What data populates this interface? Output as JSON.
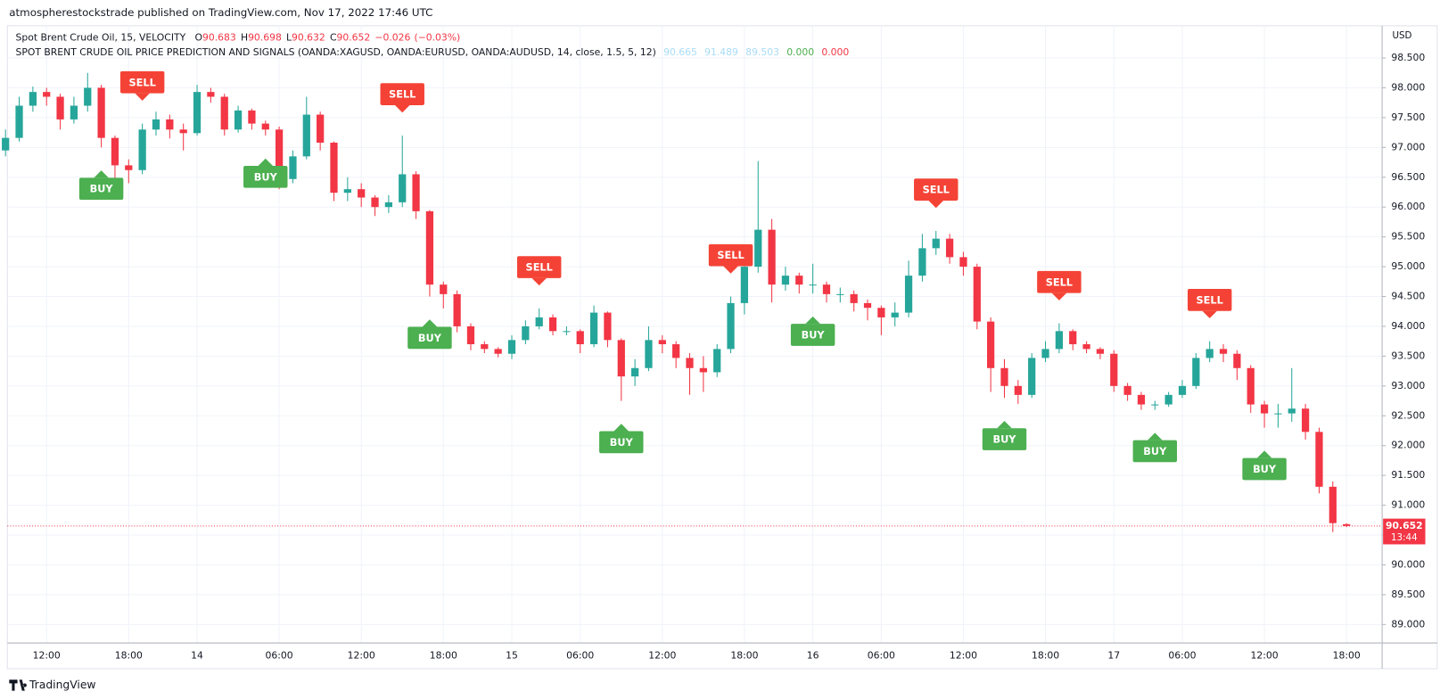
{
  "header": {
    "publisher": "atmospherestockstrade published on TradingView.com, Nov 17, 2022 17:46 UTC"
  },
  "footer": {
    "brand": "TradingView"
  },
  "chart_data": {
    "type": "candlestick",
    "symbol_line": "Spot Brent Crude Oil, 15, VELOCITY",
    "ohlc_letters": [
      "O",
      "H",
      "L",
      "C"
    ],
    "change": {
      "value": -0.026,
      "label": "−0.026"
    },
    "change_pct": {
      "value": -0.03,
      "label": "(−0.03%)"
    },
    "indicator_title": "SPOT BRENT CRUDE OIL PRICE PREDICTION AND SIGNALS (OANDA:XAGUSD, OANDA:EURUSD, OANDA:AUDUSD, 14, close, 1.5, 5, 12)",
    "indicator_values": [
      {
        "value": 90.665,
        "color": "#a9dcf7"
      },
      {
        "value": 91.489,
        "color": "#a9dcf7"
      },
      {
        "value": 89.503,
        "color": "#a9dcf7"
      },
      {
        "value": 0,
        "label": "0.000",
        "color": "#4caf50"
      },
      {
        "value": 0,
        "label": "0.000",
        "color": "#f23645"
      }
    ],
    "currency": "USD",
    "countdown": "13:44",
    "up_color": "#26a69a",
    "down_color": "#f23645",
    "grid": true,
    "ylim": [
      88.69,
      99.04
    ],
    "yticks": [
      {
        "value": 89,
        "label": "89.000"
      },
      {
        "value": 89.5,
        "label": "89.500"
      },
      {
        "value": 90,
        "label": "90.000"
      },
      {
        "value": 90.5,
        "label": "90.500"
      },
      {
        "value": 91,
        "label": "91.000"
      },
      {
        "value": 91.5,
        "label": "91.500"
      },
      {
        "value": 92,
        "label": "92.000"
      },
      {
        "value": 92.5,
        "label": "92.500"
      },
      {
        "value": 93,
        "label": "93.000"
      },
      {
        "value": 93.5,
        "label": "93.500"
      },
      {
        "value": 94,
        "label": "94.000"
      },
      {
        "value": 94.5,
        "label": "94.500"
      },
      {
        "value": 95,
        "label": "95.000"
      },
      {
        "value": 95.5,
        "label": "95.500"
      },
      {
        "value": 96,
        "label": "96.000"
      },
      {
        "value": 96.5,
        "label": "96.500"
      },
      {
        "value": 97,
        "label": "97.000"
      },
      {
        "value": 97.5,
        "label": "97.500"
      },
      {
        "value": 98,
        "label": "98.000"
      },
      {
        "value": 98.5,
        "label": "98.500"
      }
    ],
    "categories": [
      null,
      null,
      null,
      "12:00",
      null,
      null,
      null,
      null,
      null,
      "18:00",
      null,
      null,
      null,
      null,
      "14",
      null,
      null,
      null,
      null,
      null,
      "06:00",
      null,
      null,
      null,
      null,
      null,
      "12:00",
      null,
      null,
      null,
      null,
      null,
      "18:00",
      null,
      null,
      null,
      null,
      "15",
      null,
      null,
      null,
      null,
      "06:00",
      null,
      null,
      null,
      null,
      null,
      "12:00",
      null,
      null,
      null,
      null,
      null,
      "18:00",
      null,
      null,
      null,
      null,
      "16",
      null,
      null,
      null,
      null,
      "06:00",
      null,
      null,
      null,
      null,
      null,
      "12:00",
      null,
      null,
      null,
      null,
      null,
      "18:00",
      null,
      null,
      null,
      null,
      "17",
      null,
      null,
      null,
      null,
      "06:00",
      null,
      null,
      null,
      null,
      null,
      "12:00",
      null,
      null,
      null,
      null,
      null,
      "18:00"
    ],
    "open": [
      96.95,
      97.16,
      97.7,
      97.93,
      97.85,
      97.47,
      97.7,
      98.0,
      97.16,
      96.7,
      96.62,
      97.3,
      97.47,
      97.3,
      97.24,
      97.93,
      97.85,
      97.3,
      97.62,
      97.4,
      97.3,
      96.47,
      96.85,
      97.55,
      97.08,
      96.24,
      96.3,
      96.16,
      96.0,
      96.08,
      96.55,
      95.93,
      94.7,
      94.54,
      94.0,
      93.7,
      93.62,
      93.54,
      93.77,
      94.0,
      94.15,
      93.92,
      93.92,
      93.7,
      94.23,
      93.77,
      93.16,
      93.3,
      93.77,
      93.7,
      93.47,
      93.3,
      93.23,
      93.62,
      94.39,
      95.0,
      95.62,
      94.7,
      94.85,
      94.7,
      94.7,
      94.54,
      94.54,
      94.39,
      94.31,
      94.15,
      94.23,
      94.85,
      95.31,
      95.47,
      95.16,
      95.0,
      94.08,
      93.3,
      93.0,
      92.85,
      93.47,
      93.62,
      93.92,
      93.7,
      93.62,
      93.54,
      93.0,
      92.85,
      92.69,
      92.69,
      92.85,
      93.0,
      93.47,
      93.62,
      93.54,
      93.3,
      92.69,
      92.54,
      92.54,
      92.62,
      92.23,
      91.31,
      90.683
    ],
    "high": [
      97.3,
      97.85,
      98.02,
      98.0,
      97.9,
      97.85,
      98.25,
      98.05,
      97.2,
      96.8,
      97.4,
      97.6,
      97.55,
      97.4,
      98.05,
      98.0,
      97.9,
      97.7,
      97.65,
      97.45,
      97.35,
      96.95,
      97.85,
      97.6,
      97.1,
      96.5,
      96.4,
      96.2,
      96.2,
      97.2,
      96.6,
      95.95,
      94.75,
      94.6,
      94.05,
      93.75,
      93.65,
      93.85,
      94.1,
      94.3,
      94.2,
      94.0,
      93.95,
      94.35,
      94.25,
      93.8,
      93.45,
      94.0,
      93.85,
      93.75,
      93.55,
      93.5,
      93.7,
      94.5,
      95.3,
      96.77,
      95.8,
      95.0,
      94.9,
      95.05,
      94.75,
      94.65,
      94.6,
      94.45,
      94.35,
      94.4,
      95.1,
      95.55,
      95.6,
      95.55,
      95.25,
      95.05,
      94.15,
      93.45,
      93.1,
      93.55,
      93.75,
      94.05,
      93.95,
      93.75,
      93.65,
      93.6,
      93.05,
      92.9,
      92.75,
      92.9,
      93.1,
      93.55,
      93.75,
      93.7,
      93.6,
      93.35,
      92.75,
      92.7,
      93.3,
      92.7,
      92.3,
      91.4,
      90.698
    ],
    "low": [
      96.85,
      97.1,
      97.6,
      97.7,
      97.3,
      97.4,
      97.6,
      97.0,
      96.45,
      96.4,
      96.55,
      97.2,
      97.15,
      96.95,
      97.2,
      97.75,
      97.2,
      97.25,
      97.3,
      97.2,
      96.3,
      96.4,
      96.8,
      96.95,
      96.1,
      96.1,
      96.0,
      95.85,
      95.9,
      96.0,
      95.8,
      94.5,
      94.3,
      93.9,
      93.6,
      93.55,
      93.48,
      93.45,
      93.7,
      93.95,
      93.85,
      93.85,
      93.55,
      93.65,
      93.65,
      92.75,
      93.0,
      93.25,
      93.55,
      93.3,
      92.85,
      92.9,
      93.15,
      93.55,
      94.2,
      94.9,
      94.4,
      94.6,
      94.55,
      94.55,
      94.4,
      94.4,
      94.25,
      94.1,
      93.85,
      94.0,
      94.15,
      94.75,
      95.2,
      95.05,
      94.85,
      93.95,
      92.9,
      92.8,
      92.7,
      92.8,
      93.4,
      93.55,
      93.6,
      93.55,
      93.45,
      92.9,
      92.75,
      92.6,
      92.6,
      92.65,
      92.8,
      92.95,
      93.4,
      93.4,
      93.1,
      92.55,
      92.3,
      92.3,
      92.4,
      92.1,
      91.2,
      90.55,
      90.632
    ],
    "close": [
      97.16,
      97.7,
      97.93,
      97.85,
      97.47,
      97.7,
      98.0,
      97.16,
      96.7,
      96.62,
      97.3,
      97.47,
      97.3,
      97.24,
      97.93,
      97.85,
      97.3,
      97.62,
      97.4,
      97.3,
      96.47,
      96.85,
      97.55,
      97.08,
      96.24,
      96.3,
      96.16,
      96.0,
      96.08,
      96.55,
      95.93,
      94.7,
      94.54,
      94.0,
      93.7,
      93.62,
      93.54,
      93.77,
      94.0,
      94.15,
      93.92,
      93.92,
      93.7,
      94.23,
      93.77,
      93.16,
      93.3,
      93.77,
      93.7,
      93.47,
      93.3,
      93.23,
      93.62,
      94.39,
      95.0,
      95.62,
      94.7,
      94.85,
      94.7,
      94.7,
      94.54,
      94.54,
      94.39,
      94.31,
      94.15,
      94.23,
      94.85,
      95.31,
      95.47,
      95.16,
      95.0,
      94.08,
      93.3,
      93.0,
      92.85,
      93.47,
      93.62,
      93.92,
      93.7,
      93.62,
      93.54,
      93.0,
      92.85,
      92.69,
      92.69,
      92.85,
      93.0,
      93.47,
      93.62,
      93.54,
      93.3,
      92.69,
      92.54,
      92.54,
      92.62,
      92.23,
      91.31,
      90.7,
      90.652
    ],
    "signals": [
      {
        "label": "SELL",
        "bar": 10
      },
      {
        "label": "SELL",
        "bar": 29
      },
      {
        "label": "SELL",
        "bar": 39
      },
      {
        "label": "SELL",
        "bar": 53
      },
      {
        "label": "SELL",
        "bar": 68
      },
      {
        "label": "SELL",
        "bar": 77
      },
      {
        "label": "SELL",
        "bar": 88
      },
      {
        "label": "BUY",
        "bar": 7
      },
      {
        "label": "BUY",
        "bar": 19
      },
      {
        "label": "BUY",
        "bar": 31
      },
      {
        "label": "BUY",
        "bar": 45
      },
      {
        "label": "BUY",
        "bar": 59
      },
      {
        "label": "BUY",
        "bar": 73
      },
      {
        "label": "BUY",
        "bar": 84
      },
      {
        "label": "BUY",
        "bar": 92
      }
    ]
  }
}
